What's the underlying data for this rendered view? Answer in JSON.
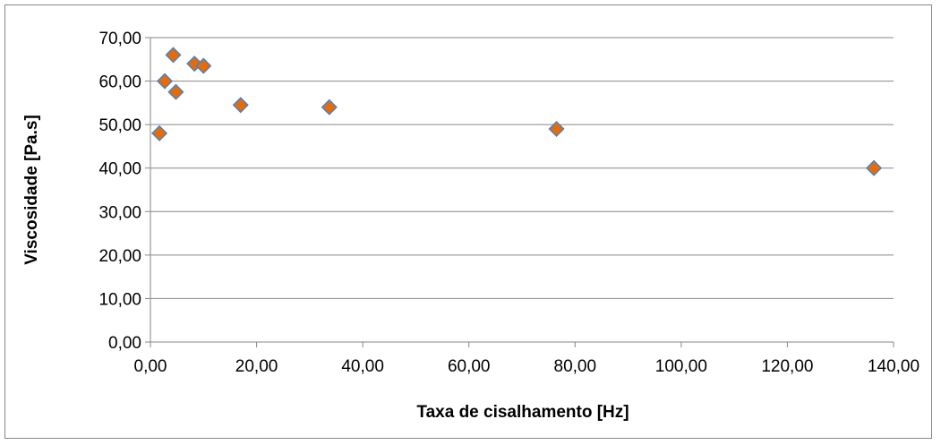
{
  "chart_data": {
    "type": "scatter",
    "title": "",
    "xlabel": "Taxa de cisalhamento [Hz]",
    "ylabel": "Viscosidade [Pa.s]",
    "xlim": [
      0,
      140
    ],
    "ylim": [
      0,
      70
    ],
    "x_ticks": [
      "0,00",
      "20,00",
      "40,00",
      "60,00",
      "80,00",
      "100,00",
      "120,00",
      "140,00"
    ],
    "y_ticks": [
      "0,00",
      "10,00",
      "20,00",
      "30,00",
      "40,00",
      "50,00",
      "60,00",
      "70,00"
    ],
    "grid": "horizontal",
    "legend": "none",
    "marker": "diamond",
    "marker_color": "#E46C0A",
    "marker_edge_color": "#4F81BD",
    "series": [
      {
        "points": [
          {
            "x": 1.7,
            "y": 48.0
          },
          {
            "x": 2.7,
            "y": 60.0
          },
          {
            "x": 4.3,
            "y": 66.0
          },
          {
            "x": 4.8,
            "y": 57.5
          },
          {
            "x": 8.3,
            "y": 64.0
          },
          {
            "x": 10.0,
            "y": 63.5
          },
          {
            "x": 17.0,
            "y": 54.5
          },
          {
            "x": 33.7,
            "y": 54.0
          },
          {
            "x": 76.5,
            "y": 49.0
          },
          {
            "x": 136.3,
            "y": 40.0
          }
        ]
      }
    ]
  }
}
